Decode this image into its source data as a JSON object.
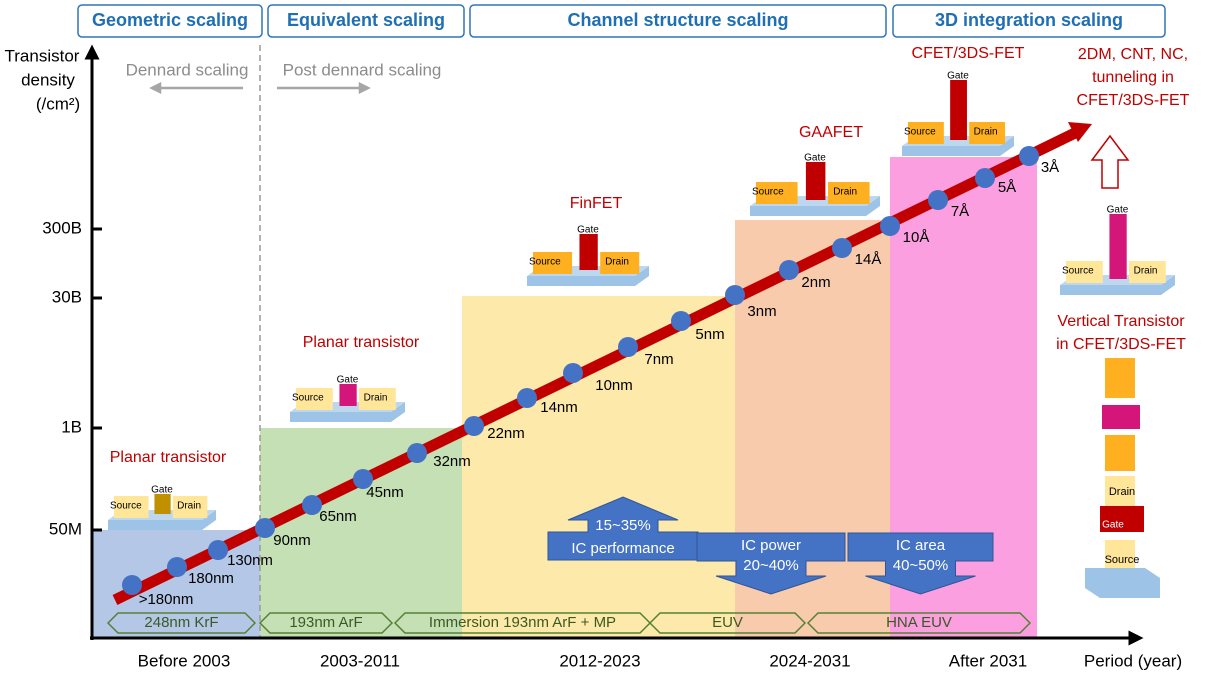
{
  "header": {
    "eras": [
      "Geometric scaling",
      "Equivalent scaling",
      "Channel structure scaling",
      "3D integration scaling"
    ]
  },
  "y_axis": {
    "title": [
      "Transistor",
      "density",
      "(/cm²)"
    ],
    "ticks": [
      "300B",
      "30B",
      "1B",
      "50M"
    ]
  },
  "x_axis": {
    "title": "Period (year)",
    "periods": [
      "Before 2003",
      "2003-2011",
      "2012-2023",
      "2024-2031",
      "After 2031"
    ]
  },
  "dennard": {
    "left": "Dennard scaling",
    "right": "Post dennard scaling"
  },
  "nodes": [
    ">180nm",
    "180nm",
    "130nm",
    "90nm",
    "65nm",
    "45nm",
    "32nm",
    "22nm",
    "14nm",
    "10nm",
    "7nm",
    "5nm",
    "3nm",
    "2nm",
    "14Å",
    "10Å",
    "7Å",
    "5Å",
    "3Å"
  ],
  "devices": [
    "Planar transistor",
    "Planar transistor",
    "FinFET",
    "GAAFET",
    "CFET/3DS-FET"
  ],
  "device_parts": {
    "source": "Source",
    "gate": "Gate",
    "drain": "Drain"
  },
  "future": {
    "text": [
      "2DM, CNT, NC,",
      "tunneling in",
      "CFET/3DS-FET"
    ],
    "vertical": [
      "Vertical Transistor",
      "in CFET/3DS-FET"
    ]
  },
  "lithography": [
    "248nm KrF",
    "193nm ArF",
    "Immersion 193nm ArF + MP",
    "EUV",
    "HNA EUV"
  ],
  "benefits": [
    {
      "label": "IC performance",
      "value": "15~35%"
    },
    {
      "label": "IC power",
      "value": "20~40%"
    },
    {
      "label": "IC area",
      "value": "40~50%"
    }
  ]
}
